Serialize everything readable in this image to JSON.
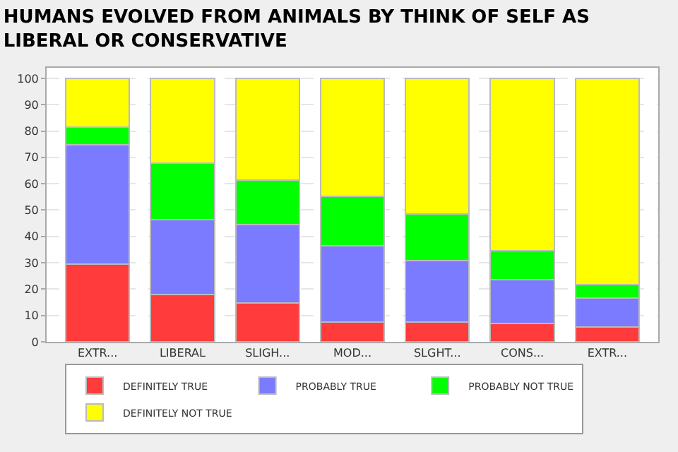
{
  "chart_data": {
    "type": "bar",
    "title": "HUMANS EVOLVED FROM ANIMALS BY THINK OF SELF AS LIBERAL OR CONSERVATIVE",
    "categories": [
      "EXTR...",
      "LIBERAL",
      "SLIGH...",
      "MOD...",
      "SLGHT...",
      "CONS...",
      "EXTR..."
    ],
    "stacked": true,
    "series": [
      {
        "name": "DEFINITELY TRUE",
        "color": "#ff3b3b",
        "values": [
          29.6,
          17.9,
          14.8,
          7.4,
          7.4,
          7.1,
          5.5
        ]
      },
      {
        "name": "PROBABLY TRUE",
        "color": "#7b7bff",
        "values": [
          45.1,
          28.4,
          29.7,
          29.1,
          23.4,
          16.4,
          11.2
        ]
      },
      {
        "name": "PROBABLY NOT TRUE",
        "color": "#00ff00",
        "values": [
          6.7,
          21.6,
          16.9,
          18.8,
          17.7,
          11.1,
          4.9
        ]
      },
      {
        "name": "DEFINITELY NOT TRUE",
        "color": "#ffff00",
        "values": [
          18.6,
          32.1,
          38.6,
          44.7,
          51.5,
          65.4,
          78.4
        ]
      }
    ],
    "ylim": [
      0,
      104
    ],
    "yticks": [
      0,
      10,
      20,
      30,
      40,
      50,
      60,
      70,
      80,
      90,
      100
    ],
    "grid": "y",
    "legend": "bottom"
  }
}
